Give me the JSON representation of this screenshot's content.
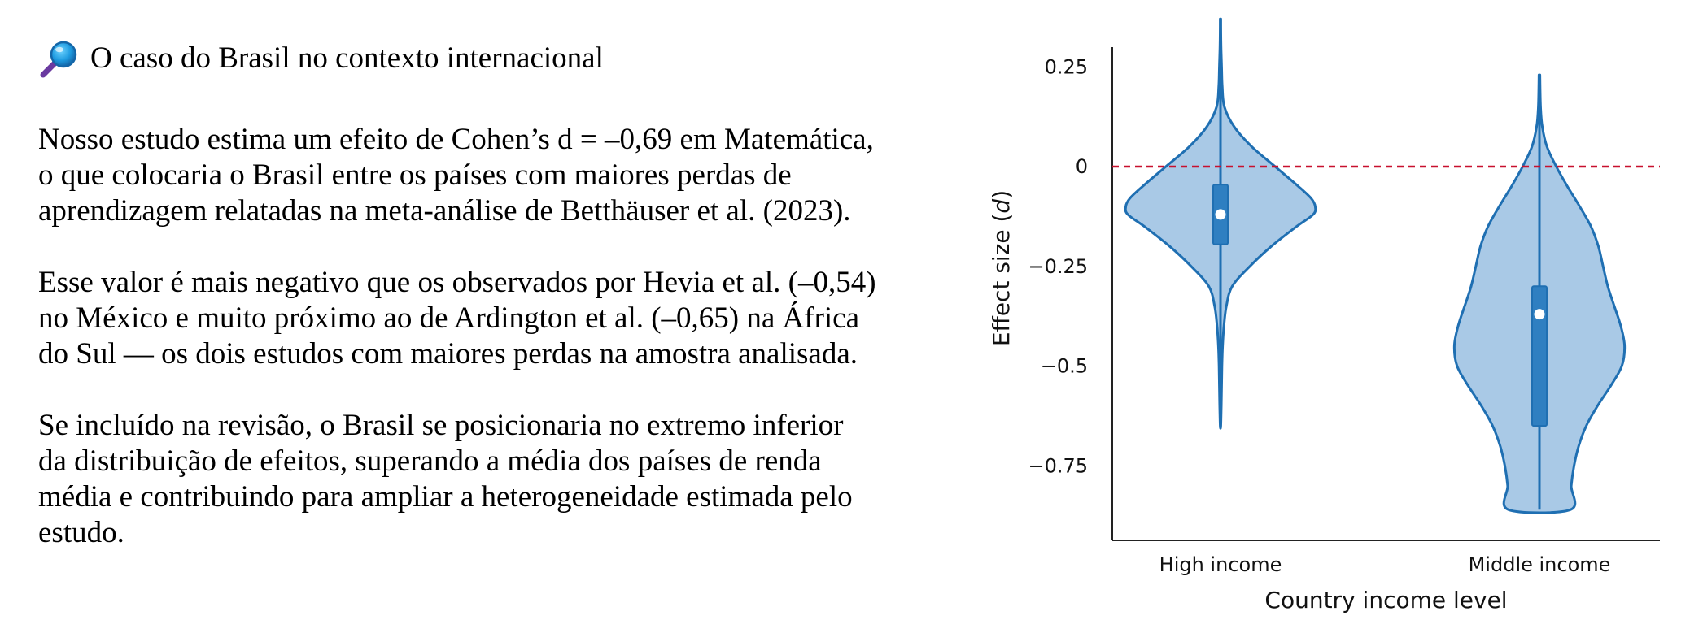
{
  "slide": {
    "heading": "O caso do Brasil no contexto internacional",
    "heading_icon": "magnifying-glass-icon",
    "paragraphs": [
      [
        "Nosso estudo estima um efeito de Cohen’s d = –0,69 em Matemática,",
        "o que colocaria o Brasil entre os países com maiores perdas de",
        "aprendizagem relatadas na meta-análise de Betthäuser et al. (2023)."
      ],
      [
        "Esse valor é mais negativo que os observados por Hevia et al. (–0,54)",
        "no México e muito próximo ao de Ardington et al. (–0,65) na África",
        "do Sul — os dois estudos com maiores perdas na amostra analisada."
      ],
      [
        "Se incluído na revisão, o Brasil se posicionaria no extremo inferior",
        "da distribuição de efeitos, superando a média dos países de renda",
        "média e contribuindo para ampliar a heterogeneidade estimada pelo",
        "estudo."
      ]
    ]
  },
  "chart_data": {
    "type": "violin",
    "xlabel": "Country income level",
    "ylabel_prefix": "Effect size (",
    "ylabel_var": "d",
    "ylabel_suffix": ")",
    "categories": [
      "High income",
      "Middle income"
    ],
    "yticks": [
      0.25,
      0,
      -0.25,
      -0.5,
      -0.75
    ],
    "ytick_labels": [
      "0.25",
      "0",
      "−0.25",
      "−0.5",
      "−0.75"
    ],
    "ylim": [
      -0.93,
      0.37
    ],
    "reference_line": {
      "y": 0,
      "style": "dashed",
      "color": "#c8102e"
    },
    "colors": {
      "fill": "#a9c9e6",
      "edge": "#1f6fb2",
      "box": "#2f7fc1",
      "median": "#ffffff"
    },
    "violins": [
      {
        "category": "High income",
        "range": [
          -0.65,
          0.37
        ],
        "median": -0.12,
        "q1": -0.195,
        "q3": -0.045,
        "density": [
          [
            0.37,
            0.003
          ],
          [
            0.3,
            0.006
          ],
          [
            0.25,
            0.012
          ],
          [
            0.2,
            0.018
          ],
          [
            0.15,
            0.04
          ],
          [
            0.1,
            0.14
          ],
          [
            0.05,
            0.32
          ],
          [
            0.0,
            0.56
          ],
          [
            -0.05,
            0.8
          ],
          [
            -0.08,
            0.93
          ],
          [
            -0.1,
            0.97
          ],
          [
            -0.12,
            0.95
          ],
          [
            -0.15,
            0.78
          ],
          [
            -0.2,
            0.52
          ],
          [
            -0.25,
            0.3
          ],
          [
            -0.3,
            0.12
          ],
          [
            -0.35,
            0.06
          ],
          [
            -0.4,
            0.035
          ],
          [
            -0.45,
            0.022
          ],
          [
            -0.5,
            0.015
          ],
          [
            -0.55,
            0.012
          ],
          [
            -0.6,
            0.008
          ],
          [
            -0.65,
            0.003
          ]
        ]
      },
      {
        "category": "Middle income",
        "range": [
          -0.86,
          0.23
        ],
        "median": -0.37,
        "q1": -0.65,
        "q3": -0.3,
        "density": [
          [
            0.23,
            0.005
          ],
          [
            0.15,
            0.012
          ],
          [
            0.1,
            0.03
          ],
          [
            0.05,
            0.08
          ],
          [
            0.0,
            0.18
          ],
          [
            -0.05,
            0.3
          ],
          [
            -0.1,
            0.43
          ],
          [
            -0.15,
            0.55
          ],
          [
            -0.2,
            0.63
          ],
          [
            -0.25,
            0.68
          ],
          [
            -0.3,
            0.73
          ],
          [
            -0.35,
            0.8
          ],
          [
            -0.4,
            0.87
          ],
          [
            -0.45,
            0.91
          ],
          [
            -0.5,
            0.88
          ],
          [
            -0.55,
            0.76
          ],
          [
            -0.6,
            0.62
          ],
          [
            -0.65,
            0.5
          ],
          [
            -0.7,
            0.42
          ],
          [
            -0.75,
            0.37
          ],
          [
            -0.8,
            0.34
          ],
          [
            -0.86,
            0.33
          ]
        ]
      }
    ]
  }
}
